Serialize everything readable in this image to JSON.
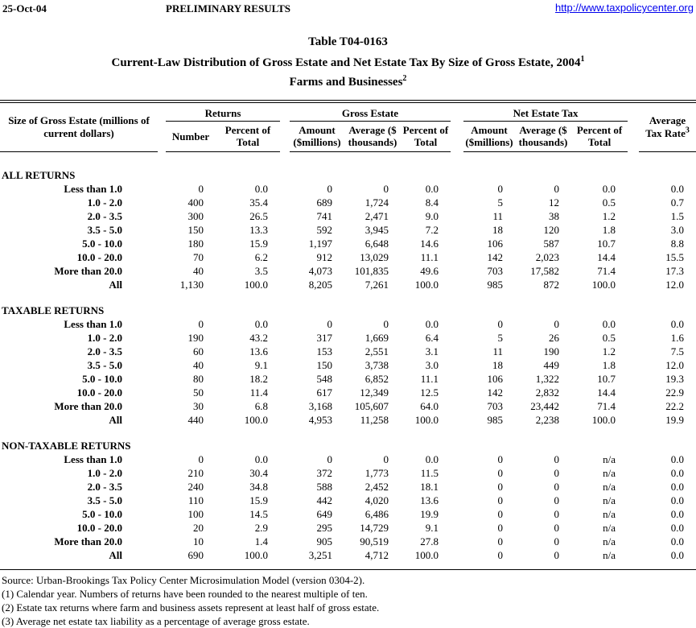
{
  "page": {
    "date": "25-Oct-04",
    "status": "PRELIMINARY RESULTS",
    "link": "http://www.taxpolicycenter.org"
  },
  "title": {
    "table_id": "Table T04-0163",
    "main": "Current-Law Distribution of Gross Estate and Net Estate Tax By Size of Gross Estate, 2004",
    "main_sup": "1",
    "subtitle": "Farms and Businesses",
    "subtitle_sup": "2"
  },
  "table": {
    "stub_header": "Size of Gross Estate (millions of\ncurrent dollars)",
    "groups": [
      {
        "label": "Returns"
      },
      {
        "label": "Gross Estate"
      },
      {
        "label": "Net Estate Tax"
      }
    ],
    "subheaders": [
      "Number",
      "Percent of\nTotal",
      "Amount\n($millions)",
      "Average ($\nthousands)",
      "Percent of\nTotal",
      "Amount\n($millions)",
      "Average ($\nthousands)",
      "Percent of\nTotal"
    ],
    "avg_tax_rate_header": "Average\nTax Rate",
    "avg_tax_rate_sup": "3",
    "sections": [
      {
        "label": "ALL RETURNS",
        "rows": [
          {
            "label": "Less than 1.0",
            "values": [
              "0",
              "0.0",
              "0",
              "0",
              "0.0",
              "0",
              "0",
              "0.0",
              "0.0"
            ]
          },
          {
            "label": "1.0 - 2.0",
            "values": [
              "400",
              "35.4",
              "689",
              "1,724",
              "8.4",
              "5",
              "12",
              "0.5",
              "0.7"
            ]
          },
          {
            "label": "2.0 - 3.5",
            "values": [
              "300",
              "26.5",
              "741",
              "2,471",
              "9.0",
              "11",
              "38",
              "1.2",
              "1.5"
            ]
          },
          {
            "label": "3.5 - 5.0",
            "values": [
              "150",
              "13.3",
              "592",
              "3,945",
              "7.2",
              "18",
              "120",
              "1.8",
              "3.0"
            ]
          },
          {
            "label": "5.0 - 10.0",
            "values": [
              "180",
              "15.9",
              "1,197",
              "6,648",
              "14.6",
              "106",
              "587",
              "10.7",
              "8.8"
            ]
          },
          {
            "label": "10.0 - 20.0",
            "values": [
              "70",
              "6.2",
              "912",
              "13,029",
              "11.1",
              "142",
              "2,023",
              "14.4",
              "15.5"
            ]
          },
          {
            "label": "More than 20.0",
            "values": [
              "40",
              "3.5",
              "4,073",
              "101,835",
              "49.6",
              "703",
              "17,582",
              "71.4",
              "17.3"
            ]
          },
          {
            "label": "All",
            "values": [
              "1,130",
              "100.0",
              "8,205",
              "7,261",
              "100.0",
              "985",
              "872",
              "100.0",
              "12.0"
            ]
          }
        ]
      },
      {
        "label": "TAXABLE RETURNS",
        "rows": [
          {
            "label": "Less than 1.0",
            "values": [
              "0",
              "0.0",
              "0",
              "0",
              "0.0",
              "0",
              "0",
              "0.0",
              "0.0"
            ]
          },
          {
            "label": "1.0 - 2.0",
            "values": [
              "190",
              "43.2",
              "317",
              "1,669",
              "6.4",
              "5",
              "26",
              "0.5",
              "1.6"
            ]
          },
          {
            "label": "2.0 - 3.5",
            "values": [
              "60",
              "13.6",
              "153",
              "2,551",
              "3.1",
              "11",
              "190",
              "1.2",
              "7.5"
            ]
          },
          {
            "label": "3.5 - 5.0",
            "values": [
              "40",
              "9.1",
              "150",
              "3,738",
              "3.0",
              "18",
              "449",
              "1.8",
              "12.0"
            ]
          },
          {
            "label": "5.0 - 10.0",
            "values": [
              "80",
              "18.2",
              "548",
              "6,852",
              "11.1",
              "106",
              "1,322",
              "10.7",
              "19.3"
            ]
          },
          {
            "label": "10.0 - 20.0",
            "values": [
              "50",
              "11.4",
              "617",
              "12,349",
              "12.5",
              "142",
              "2,832",
              "14.4",
              "22.9"
            ]
          },
          {
            "label": "More than 20.0",
            "values": [
              "30",
              "6.8",
              "3,168",
              "105,607",
              "64.0",
              "703",
              "23,442",
              "71.4",
              "22.2"
            ]
          },
          {
            "label": "All",
            "values": [
              "440",
              "100.0",
              "4,953",
              "11,258",
              "100.0",
              "985",
              "2,238",
              "100.0",
              "19.9"
            ]
          }
        ]
      },
      {
        "label": "NON-TAXABLE RETURNS",
        "rows": [
          {
            "label": "Less than 1.0",
            "values": [
              "0",
              "0.0",
              "0",
              "0",
              "0.0",
              "0",
              "0",
              "n/a",
              "0.0"
            ]
          },
          {
            "label": "1.0 - 2.0",
            "values": [
              "210",
              "30.4",
              "372",
              "1,773",
              "11.5",
              "0",
              "0",
              "n/a",
              "0.0"
            ]
          },
          {
            "label": "2.0 - 3.5",
            "values": [
              "240",
              "34.8",
              "588",
              "2,452",
              "18.1",
              "0",
              "0",
              "n/a",
              "0.0"
            ]
          },
          {
            "label": "3.5 - 5.0",
            "values": [
              "110",
              "15.9",
              "442",
              "4,020",
              "13.6",
              "0",
              "0",
              "n/a",
              "0.0"
            ]
          },
          {
            "label": "5.0 - 10.0",
            "values": [
              "100",
              "14.5",
              "649",
              "6,486",
              "19.9",
              "0",
              "0",
              "n/a",
              "0.0"
            ]
          },
          {
            "label": "10.0 - 20.0",
            "values": [
              "20",
              "2.9",
              "295",
              "14,729",
              "9.1",
              "0",
              "0",
              "n/a",
              "0.0"
            ]
          },
          {
            "label": "More than 20.0",
            "values": [
              "10",
              "1.4",
              "905",
              "90,519",
              "27.8",
              "0",
              "0",
              "n/a",
              "0.0"
            ]
          },
          {
            "label": "All",
            "values": [
              "690",
              "100.0",
              "3,251",
              "4,712",
              "100.0",
              "0",
              "0",
              "n/a",
              "0.0"
            ]
          }
        ]
      }
    ]
  },
  "footnotes": [
    "Source: Urban-Brookings Tax Policy Center Microsimulation Model (version 0304-2).",
    "(1) Calendar year. Numbers of returns have been rounded to the nearest multiple of ten.",
    "(2) Estate tax returns where farm and business assets represent at least half of gross estate.",
    "(3) Average net estate tax liability as a percentage of average gross estate."
  ]
}
